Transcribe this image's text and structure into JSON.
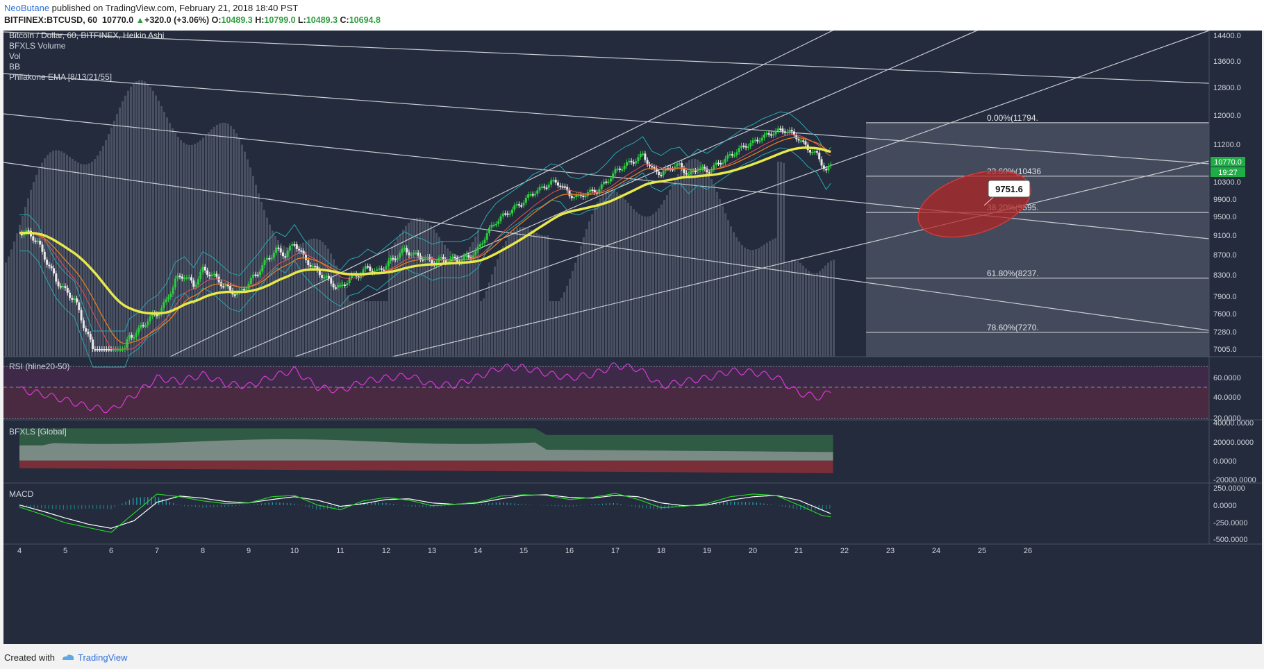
{
  "header": {
    "author": "NeoButane",
    "published": " published on TradingView.com, February 21, 2018 18:40 PST",
    "symbol": "BITFINEX:BTCUSD, 60",
    "price": "10770.0",
    "change": "+320.0 (+3.06%)",
    "ohlc": {
      "o": "10489.3",
      "h": "10799.0",
      "l": "10489.3",
      "c": "10694.8"
    }
  },
  "legend": [
    "Bitcoin / Dollar, 60, BITFINEX, Heikin Ashi",
    "BFXLS Volume",
    "Vol",
    "BB",
    "Philakone EMA [8/13/21/55]"
  ],
  "annotation": {
    "callout": "9751.6"
  },
  "price_badges": {
    "last": "10770.0",
    "countdown": "19:27"
  },
  "panels": {
    "rsi": "RSI (hline20-50)",
    "bfxls": "BFXLS [Global]",
    "macd": "MACD"
  },
  "footer": {
    "created": "Created with",
    "brand": "TradingView"
  },
  "colors": {
    "background": "#232b3d",
    "ema_fast": "#e8e84a",
    "ema_slow": "#e67e22",
    "candle_up": "#2ecc40",
    "candle_down": "#e8e8e8",
    "rsi_line": "#d63ad6",
    "macd_line": "#ffffff",
    "signal_line": "#27d427",
    "ellipse": "#c0392b"
  },
  "chart_data": {
    "type": "line",
    "price_axis": {
      "ticks": [
        14400,
        13600,
        12800,
        12000,
        11200,
        10300,
        9900,
        9500,
        9100,
        8700,
        8300,
        7900,
        7600,
        7280,
        7005
      ],
      "labels": [
        "14400.0",
        "13600.0",
        "12800.0",
        "12000.0",
        "11200.0",
        "10300.0",
        "9900.0",
        "9500.0",
        "9100.0",
        "8700.0",
        "8300.0",
        "7900.0",
        "7600.0",
        "7280.0",
        "7005.0"
      ]
    },
    "x_labels": [
      "4",
      "5",
      "6",
      "7",
      "8",
      "9",
      "10",
      "11",
      "12",
      "13",
      "14",
      "15",
      "16",
      "17",
      "18",
      "19",
      "20",
      "21",
      "22",
      "23",
      "24",
      "25",
      "26"
    ],
    "fib_levels": [
      {
        "label": "0.00%(11794.",
        "value": 11794
      },
      {
        "label": "23.60%(10436",
        "value": 10436
      },
      {
        "label": "38.20%(9595.",
        "value": 9595
      },
      {
        "label": "61.80%(8237.",
        "value": 8237
      },
      {
        "label": "78.60%(7270.",
        "value": 7270
      }
    ],
    "price_series": {
      "name": "BTCUSD",
      "x": [
        4.0,
        4.2,
        4.4,
        4.6,
        4.8,
        5.0,
        5.2,
        5.4,
        5.6,
        5.8,
        6.0,
        6.2,
        6.4,
        6.6,
        6.8,
        7.0,
        7.2,
        7.4,
        7.6,
        7.8,
        8.0,
        8.2,
        8.4,
        8.6,
        8.8,
        9.0,
        9.2,
        9.4,
        9.6,
        9.8,
        10.0,
        10.2,
        10.4,
        10.6,
        10.8,
        11.0,
        11.2,
        11.4,
        11.6,
        11.8,
        12.0,
        12.2,
        12.4,
        12.6,
        12.8,
        13.0,
        13.2,
        13.4,
        13.6,
        13.8,
        14.0,
        14.2,
        14.4,
        14.6,
        14.8,
        15.0,
        15.2,
        15.4,
        15.6,
        15.8,
        16.0,
        16.2,
        16.4,
        16.6,
        16.8,
        17.0,
        17.2,
        17.4,
        17.6,
        17.8,
        18.0,
        18.2,
        18.4,
        18.6,
        18.8,
        19.0,
        19.2,
        19.4,
        19.6,
        19.8,
        20.0,
        20.2,
        20.4,
        20.6,
        20.8,
        21.0,
        21.2,
        21.4,
        21.6,
        21.75
      ],
      "y": [
        9150,
        9150,
        8950,
        8550,
        8200,
        8000,
        7850,
        7400,
        7000,
        6700,
        6500,
        6800,
        7200,
        7300,
        7500,
        7600,
        7800,
        8200,
        8300,
        8100,
        8400,
        8300,
        8150,
        8000,
        7950,
        8150,
        8350,
        8600,
        8800,
        8700,
        8950,
        8650,
        8450,
        8300,
        8150,
        8050,
        8250,
        8300,
        8450,
        8350,
        8500,
        8650,
        8800,
        8700,
        8650,
        8550,
        8600,
        8600,
        8600,
        8650,
        8800,
        9150,
        9400,
        9550,
        9700,
        9850,
        10050,
        10150,
        10300,
        10250,
        10000,
        9950,
        10050,
        10100,
        10300,
        10550,
        10700,
        10800,
        10950,
        10600,
        10500,
        10650,
        10700,
        10450,
        10650,
        10550,
        10700,
        10850,
        11000,
        11150,
        11250,
        11400,
        11500,
        11600,
        11550,
        11350,
        11100,
        10950,
        10550,
        10770
      ]
    },
    "rsi": {
      "ylim": [
        20,
        60
      ],
      "labels": [
        "60.0000",
        "40.0000",
        "20.0000"
      ],
      "x": [
        4.0,
        4.5,
        5.0,
        5.5,
        6.0,
        6.5,
        7.0,
        7.5,
        8.0,
        8.5,
        9.0,
        9.5,
        10.0,
        10.5,
        11.0,
        11.5,
        12.0,
        12.5,
        13.0,
        13.5,
        14.0,
        14.5,
        15.0,
        15.5,
        16.0,
        16.5,
        17.0,
        17.5,
        18.0,
        18.5,
        19.0,
        19.5,
        20.0,
        20.5,
        21.0,
        21.5,
        21.75
      ],
      "y": [
        45,
        41,
        36,
        30,
        27,
        40,
        55,
        52,
        58,
        50,
        48,
        56,
        62,
        47,
        44,
        52,
        55,
        57,
        49,
        49,
        56,
        64,
        64,
        59,
        55,
        58,
        66,
        63,
        48,
        52,
        55,
        61,
        60,
        56,
        42,
        38,
        46
      ]
    },
    "bfxls": {
      "ylim": [
        -20000,
        40000
      ],
      "labels": [
        "40000.0000",
        "20000.0000",
        "0.0000",
        "-20000.0000"
      ]
    },
    "macd": {
      "ylim": [
        -500,
        250
      ],
      "labels": [
        "250.0000",
        "0.0000",
        "-250.0000",
        "-500.0000"
      ],
      "x": [
        4.0,
        4.5,
        5.0,
        5.5,
        6.0,
        6.5,
        7.0,
        7.5,
        8.0,
        8.5,
        9.0,
        9.5,
        10.0,
        10.5,
        11.0,
        11.5,
        12.0,
        12.5,
        13.0,
        13.5,
        14.0,
        14.5,
        15.0,
        15.5,
        16.0,
        16.5,
        17.0,
        17.5,
        18.0,
        18.5,
        19.0,
        19.5,
        20.0,
        20.5,
        21.0,
        21.5,
        21.75
      ],
      "macd_line": [
        -30,
        -140,
        -260,
        -330,
        -400,
        -120,
        160,
        120,
        60,
        20,
        30,
        120,
        140,
        0,
        -70,
        60,
        110,
        70,
        -10,
        10,
        40,
        130,
        150,
        140,
        80,
        110,
        170,
        80,
        -40,
        -20,
        20,
        120,
        160,
        140,
        0,
        -150,
        -180
      ],
      "signal_line": [
        0,
        -90,
        -190,
        -280,
        -340,
        -230,
        40,
        130,
        100,
        50,
        30,
        80,
        120,
        70,
        -20,
        20,
        80,
        90,
        30,
        10,
        30,
        90,
        140,
        150,
        110,
        100,
        140,
        120,
        30,
        -10,
        0,
        70,
        120,
        140,
        70,
        -70,
        -140
      ]
    }
  }
}
